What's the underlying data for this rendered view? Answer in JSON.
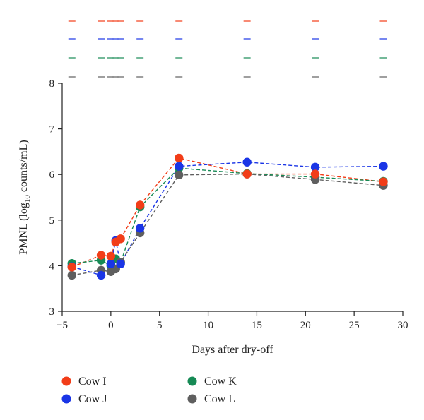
{
  "chart_data": {
    "type": "line",
    "xlabel": "Days after dry-off",
    "ylabel_main": "PMNL (log",
    "ylabel_sub": "10",
    "ylabel_tail": " counts/mL)",
    "xlim": [
      -5,
      30
    ],
    "ylim": [
      3,
      8
    ],
    "xticks": [
      -5,
      0,
      5,
      10,
      15,
      20,
      25,
      30
    ],
    "xtick_labels": [
      "−5",
      "0",
      "5",
      "10",
      "15",
      "20",
      "25",
      "30"
    ],
    "yticks": [
      3,
      4,
      5,
      6,
      7,
      8
    ],
    "ytick_labels": [
      "3",
      "4",
      "5",
      "6",
      "7",
      "8"
    ],
    "grid": false,
    "legend_position": "bottom-left",
    "series": [
      {
        "name": "Cow I",
        "color": "#f23d18",
        "x": [
          -4,
          -1,
          0,
          0.5,
          1,
          3,
          7,
          14,
          21,
          28
        ],
        "y": [
          3.97,
          4.23,
          4.21,
          4.52,
          4.59,
          5.33,
          6.36,
          6.01,
          6.01,
          5.84
        ]
      },
      {
        "name": "Cow J",
        "color": "#1a35e6",
        "x": [
          -4,
          -1,
          0,
          0.5,
          1,
          3,
          7,
          14,
          21,
          28
        ],
        "y": [
          3.98,
          3.79,
          4.04,
          4.55,
          4.04,
          4.82,
          6.18,
          6.27,
          6.16,
          6.18
        ]
      },
      {
        "name": "Cow K",
        "color": "#168a55",
        "x": [
          -4,
          -1,
          0,
          0.5,
          1,
          3,
          7,
          14,
          21,
          28
        ],
        "y": [
          4.05,
          4.12,
          4.0,
          4.15,
          4.07,
          5.29,
          6.14,
          6.02,
          5.94,
          5.85
        ]
      },
      {
        "name": "Cow L",
        "color": "#5f5f5f",
        "x": [
          -4,
          -1,
          0,
          0.5,
          1,
          3,
          7,
          14,
          21,
          28
        ],
        "y": [
          3.79,
          3.9,
          3.87,
          3.93,
          4.08,
          4.72,
          5.99,
          6.01,
          5.89,
          5.76
        ]
      }
    ]
  }
}
